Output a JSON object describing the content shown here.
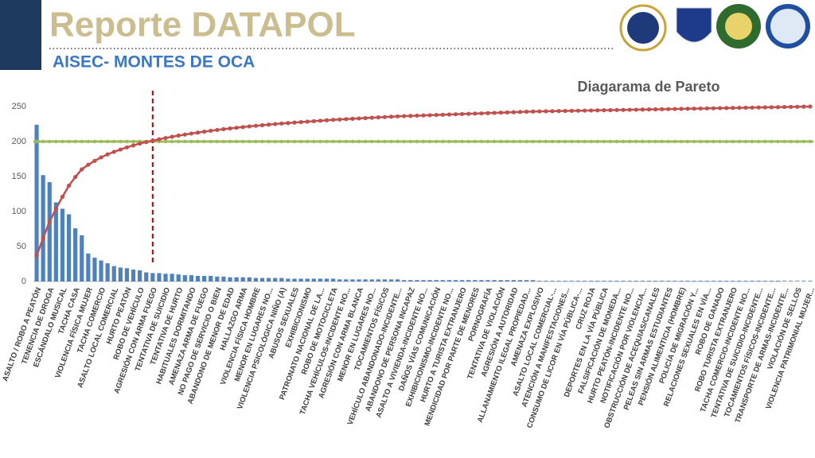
{
  "header": {
    "title": "Reporte DATAPOL",
    "subtitle": "AISEC- MONTES DE OCA"
  },
  "chart_data": {
    "type": "pareto",
    "title": "Diagarama de Pareto",
    "categories": [
      "ASALTO / ROBO A PEATÓN",
      null,
      "TENENCIA DE DROGA",
      null,
      "ESCÁNDALO MUSICAL",
      null,
      "TACHA CASA",
      null,
      "VIOLENCIA FÍSICA MUJER",
      null,
      "TACHA COMERCIO",
      null,
      "ASALTO LOCAL COMERCIAL",
      null,
      "HURTO PEATÓN",
      null,
      "ROBO DE VEHÍCULO",
      null,
      "AGRESIÓN CON ARMA FUEGO",
      null,
      "TENTATIVA DE SUICIDIO",
      null,
      "TENTATIVA DE HURTO",
      null,
      "HABITUALES DORMITANDO",
      null,
      "AMENAZA ARMA DE FUEGO",
      null,
      "NO PAGO DE SERVICIO O BIEN",
      null,
      "ABANDONO DE MENOR DE EDAD",
      null,
      "HALLAZGO ARMA",
      null,
      "VIOLENCIA FÍSICA HOMBRE",
      null,
      "MENOR EN LUGARES NO...",
      null,
      "VIOLENCIA PSICOLÓGICA NIÑO (A)",
      null,
      "ABUSOS SEXUALES",
      null,
      "EXHIBICIONISMO",
      null,
      "PATRONATO NACIONAL DE LA...",
      null,
      "ROBO DE MOTOCICLETA",
      null,
      "TACHA VEHÍCULOS-INCIDENTE NO...",
      null,
      "AGRESIÓN CON ARMA BLANCA",
      null,
      "MENOR EN LUGARES NO...",
      null,
      "TOCAMIENTOS FÍSICOS",
      null,
      "VEHÍCULO ABANDONADO-INCIDENTE...",
      null,
      "ABANDONO DE PERSONA INCAPAZ",
      null,
      "ASALTO A VIVIENDA-INCIDENTE NO...",
      null,
      "DAÑOS VÍAS COMUNICACIÓN",
      null,
      "EXHIBICIONISMO-INCIDENTE NO...",
      null,
      "HURTO A TURISTA EXTRANJERO",
      null,
      "MENDICIDAD POR PARTE DE MENORES",
      null,
      "PORNOGRAFÍA",
      null,
      "TENTATIVA DE VIOLACIÓN",
      null,
      "AGRESIÓN A AUTORIDAD",
      null,
      "ALLANAMIENTO ILEGAL PROPIEDAD...",
      null,
      "AMENAZA EXPLOSIVO",
      null,
      "ASALTO LOCAL COMERCIAL-...",
      null,
      "ATENCIÓN A MANIFESTACIONES...",
      null,
      "CONSUMO DE LICOR EN VÍA PÚBLICA-...",
      null,
      "CRUZ ROJA",
      null,
      "DEPORTES EN LA VÍA PÚBLICA",
      null,
      "FALSIFICACIÓN DE MONEDA...",
      null,
      "HURTO PEATÓN-INCIDENTE NO...",
      null,
      "NOTIFICACIÓN POR VIOLENCIA...",
      null,
      "OBSTRUCCIÓN DE ACEQUIAS/CANALES",
      null,
      "PELEAS SIN ARMAS ESTUDIANTES",
      null,
      "PENSIÓN ALIMENTICIA (HOMBRE)",
      null,
      "POLICÍA DE MIGRACIÓN Y...",
      null,
      "RELACIONES SEXUALES EN VÍA...",
      null,
      "ROBO DE GANADO",
      null,
      "ROBO TURISTA EXTRANJERO",
      null,
      "TACHA COMERCIO-INCIDENTE NO...",
      null,
      "TENTATIVA DE SUICIDIO-INCIDENTE...",
      null,
      "TOCAMIENTOS FÍSICOS-INCIDENTE...",
      null,
      "TRANSPORTE DE ARMAS-INCIDENTE...",
      null,
      "VIOLACIÓN DE SELLOS",
      null,
      "VIOLENCIA PATRIMONIAL MUJER..."
    ],
    "values": [
      224,
      152,
      142,
      113,
      104,
      96,
      76,
      66,
      40,
      34,
      30,
      26,
      22,
      20,
      19,
      17,
      16,
      13,
      12,
      12,
      11,
      11,
      10,
      9,
      9,
      8,
      8,
      8,
      7,
      7,
      6,
      6,
      6,
      6,
      5,
      5,
      5,
      5,
      5,
      4,
      4,
      4,
      4,
      4,
      4,
      4,
      4,
      3,
      3,
      3,
      3,
      3,
      3,
      3,
      3,
      3,
      3,
      2,
      2,
      2,
      2,
      2,
      2,
      2,
      2,
      2,
      2,
      2,
      2,
      2,
      2,
      2,
      2,
      2,
      2,
      2,
      2,
      2,
      1,
      1,
      1,
      1,
      1,
      1,
      1,
      1,
      1,
      1,
      1,
      1,
      1,
      1,
      1,
      1,
      1,
      1,
      1,
      1,
      1,
      1,
      1,
      1,
      1,
      1,
      1,
      1,
      1,
      1,
      1,
      1,
      1,
      1,
      1,
      1,
      1,
      1,
      1,
      1,
      1,
      1,
      1
    ],
    "color": "#4f81bd",
    "line_color": "#c0504d",
    "threshold": 80,
    "threshold_color": "#9bbb59",
    "cutoff_color": "#c00000",
    "ylim": [
      0,
      250
    ],
    "yticks": [
      0,
      50,
      100,
      150,
      200,
      250
    ],
    "y2lim": [
      0,
      100
    ],
    "grid": false
  }
}
